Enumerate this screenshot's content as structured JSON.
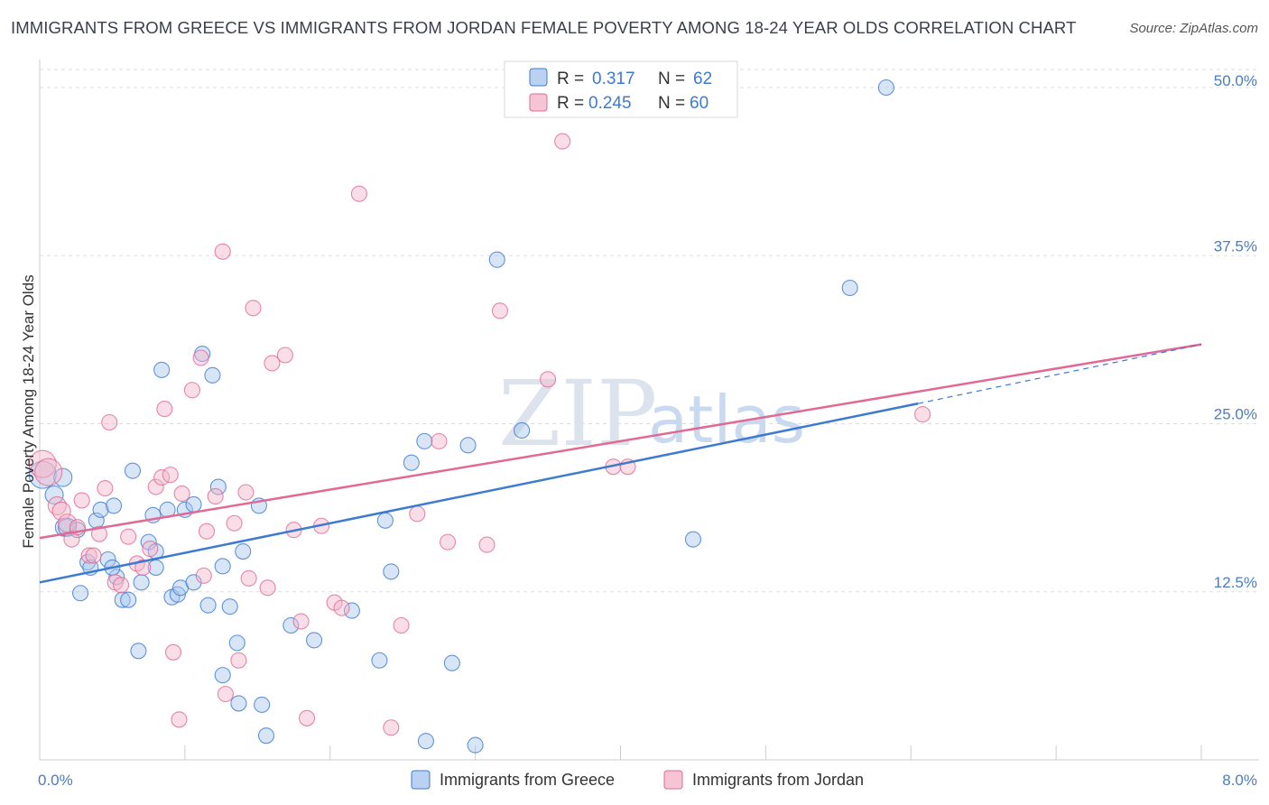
{
  "title": "IMMIGRANTS FROM GREECE VS IMMIGRANTS FROM JORDAN FEMALE POVERTY AMONG 18-24 YEAR OLDS CORRELATION CHART",
  "source": "Source: ZipAtlas.com",
  "watermark": {
    "zip": "ZIP",
    "atlas": "atlas"
  },
  "colors": {
    "greece": "#3d7ad0",
    "greece_fill": "#a9c6ee",
    "jordan": "#e06a95",
    "jordan_fill": "#f4b6ca"
  },
  "legend": {
    "greece": {
      "r_label": "R =",
      "r_value": "0.317",
      "n_label": "N =",
      "n_value": "62"
    },
    "jordan": {
      "r_label": "R =",
      "r_value": "0.245",
      "n_label": "N =",
      "n_value": "60"
    }
  },
  "bottom_legend": {
    "greece": "Immigrants from Greece",
    "jordan": "Immigrants from Jordan"
  },
  "chart_data": {
    "type": "scatter",
    "title": "IMMIGRANTS FROM GREECE VS IMMIGRANTS FROM JORDAN FEMALE POVERTY AMONG 18-24 YEAR OLDS CORRELATION CHART",
    "xlabel": "",
    "ylabel": "Female Poverty Among 18-24 Year Olds",
    "xlim": [
      0,
      8
    ],
    "ylim": [
      0,
      50
    ],
    "x_ticks": [
      {
        "value": 0,
        "label": "0.0%"
      },
      {
        "value": 8,
        "label": "8.0%"
      }
    ],
    "y_ticks": [
      {
        "value": 12.5,
        "label": "12.5%"
      },
      {
        "value": 25,
        "label": "25.0%"
      },
      {
        "value": 37.5,
        "label": "37.5%"
      },
      {
        "value": 50,
        "label": "50.0%"
      }
    ],
    "grid": true,
    "legend_position": "top-center",
    "series": [
      {
        "name": "Immigrants from Greece",
        "trend": {
          "x0": 0,
          "y0": 13.2,
          "x1": 6.05,
          "y1": 26.5,
          "dash_to_x": 8,
          "dash_to_y": 30.9
        },
        "points": [
          [
            0.02,
            21.2
          ],
          [
            0.1,
            19.7
          ],
          [
            0.16,
            21.0
          ],
          [
            0.17,
            17.3
          ],
          [
            0.19,
            17.3
          ],
          [
            0.26,
            17.1
          ],
          [
            0.28,
            12.4
          ],
          [
            0.33,
            14.7
          ],
          [
            0.35,
            14.3
          ],
          [
            0.39,
            17.8
          ],
          [
            0.42,
            18.6
          ],
          [
            0.47,
            14.9
          ],
          [
            0.51,
            18.9
          ],
          [
            0.53,
            13.6
          ],
          [
            0.57,
            11.9
          ],
          [
            0.61,
            11.9
          ],
          [
            0.64,
            21.5
          ],
          [
            0.68,
            8.1
          ],
          [
            0.75,
            16.2
          ],
          [
            0.78,
            18.2
          ],
          [
            0.8,
            14.3
          ],
          [
            0.8,
            15.5
          ],
          [
            0.84,
            29.0
          ],
          [
            0.88,
            18.6
          ],
          [
            0.91,
            12.1
          ],
          [
            0.95,
            12.3
          ],
          [
            0.97,
            12.8
          ],
          [
            1.0,
            18.6
          ],
          [
            1.06,
            13.2
          ],
          [
            1.06,
            19.0
          ],
          [
            1.12,
            30.2
          ],
          [
            1.16,
            11.5
          ],
          [
            1.19,
            28.6
          ],
          [
            1.23,
            20.3
          ],
          [
            1.26,
            14.4
          ],
          [
            1.26,
            6.3
          ],
          [
            1.31,
            11.4
          ],
          [
            1.36,
            8.7
          ],
          [
            1.37,
            4.2
          ],
          [
            1.4,
            15.5
          ],
          [
            1.51,
            18.9
          ],
          [
            1.53,
            4.1
          ],
          [
            1.56,
            1.8
          ],
          [
            1.73,
            10.0
          ],
          [
            1.89,
            8.9
          ],
          [
            2.15,
            11.1
          ],
          [
            2.34,
            7.4
          ],
          [
            2.38,
            17.8
          ],
          [
            2.42,
            14.0
          ],
          [
            2.56,
            22.1
          ],
          [
            2.65,
            23.7
          ],
          [
            2.66,
            1.4
          ],
          [
            2.84,
            7.2
          ],
          [
            2.95,
            23.4
          ],
          [
            3.0,
            1.1
          ],
          [
            3.15,
            37.2
          ],
          [
            3.32,
            24.5
          ],
          [
            4.5,
            16.4
          ],
          [
            5.58,
            35.1
          ],
          [
            5.83,
            50.0
          ],
          [
            0.5,
            14.3
          ],
          [
            0.7,
            13.2
          ]
        ]
      },
      {
        "name": "Immigrants from Jordan",
        "trend": {
          "x0": 0,
          "y0": 16.5,
          "x1": 8,
          "y1": 30.9
        },
        "points": [
          [
            0.02,
            22.0
          ],
          [
            0.06,
            21.4
          ],
          [
            0.12,
            18.9
          ],
          [
            0.15,
            18.5
          ],
          [
            0.19,
            17.6
          ],
          [
            0.22,
            16.4
          ],
          [
            0.26,
            17.3
          ],
          [
            0.29,
            19.3
          ],
          [
            0.34,
            15.2
          ],
          [
            0.37,
            15.2
          ],
          [
            0.41,
            16.8
          ],
          [
            0.45,
            20.2
          ],
          [
            0.48,
            25.1
          ],
          [
            0.52,
            13.2
          ],
          [
            0.56,
            13.0
          ],
          [
            0.61,
            16.6
          ],
          [
            0.67,
            14.6
          ],
          [
            0.71,
            14.3
          ],
          [
            0.76,
            15.7
          ],
          [
            0.8,
            20.3
          ],
          [
            0.84,
            21.0
          ],
          [
            0.86,
            26.1
          ],
          [
            0.9,
            21.2
          ],
          [
            0.92,
            8.0
          ],
          [
            0.96,
            3.0
          ],
          [
            0.98,
            19.8
          ],
          [
            1.05,
            27.5
          ],
          [
            1.11,
            29.9
          ],
          [
            1.13,
            13.7
          ],
          [
            1.15,
            17.0
          ],
          [
            1.21,
            19.6
          ],
          [
            1.26,
            37.8
          ],
          [
            1.28,
            4.9
          ],
          [
            1.34,
            17.6
          ],
          [
            1.37,
            7.4
          ],
          [
            1.42,
            19.9
          ],
          [
            1.44,
            13.5
          ],
          [
            1.47,
            33.6
          ],
          [
            1.6,
            29.5
          ],
          [
            1.69,
            30.1
          ],
          [
            1.75,
            17.1
          ],
          [
            1.8,
            10.3
          ],
          [
            1.84,
            3.1
          ],
          [
            1.94,
            17.4
          ],
          [
            2.03,
            11.7
          ],
          [
            2.08,
            11.3
          ],
          [
            2.2,
            42.1
          ],
          [
            2.42,
            2.4
          ],
          [
            2.49,
            10.0
          ],
          [
            2.6,
            18.3
          ],
          [
            2.75,
            23.7
          ],
          [
            2.81,
            16.2
          ],
          [
            3.08,
            16.0
          ],
          [
            3.17,
            33.4
          ],
          [
            3.5,
            28.3
          ],
          [
            3.95,
            21.8
          ],
          [
            4.05,
            21.8
          ],
          [
            3.6,
            46.0
          ],
          [
            6.08,
            25.7
          ],
          [
            1.57,
            12.8
          ]
        ]
      }
    ]
  }
}
